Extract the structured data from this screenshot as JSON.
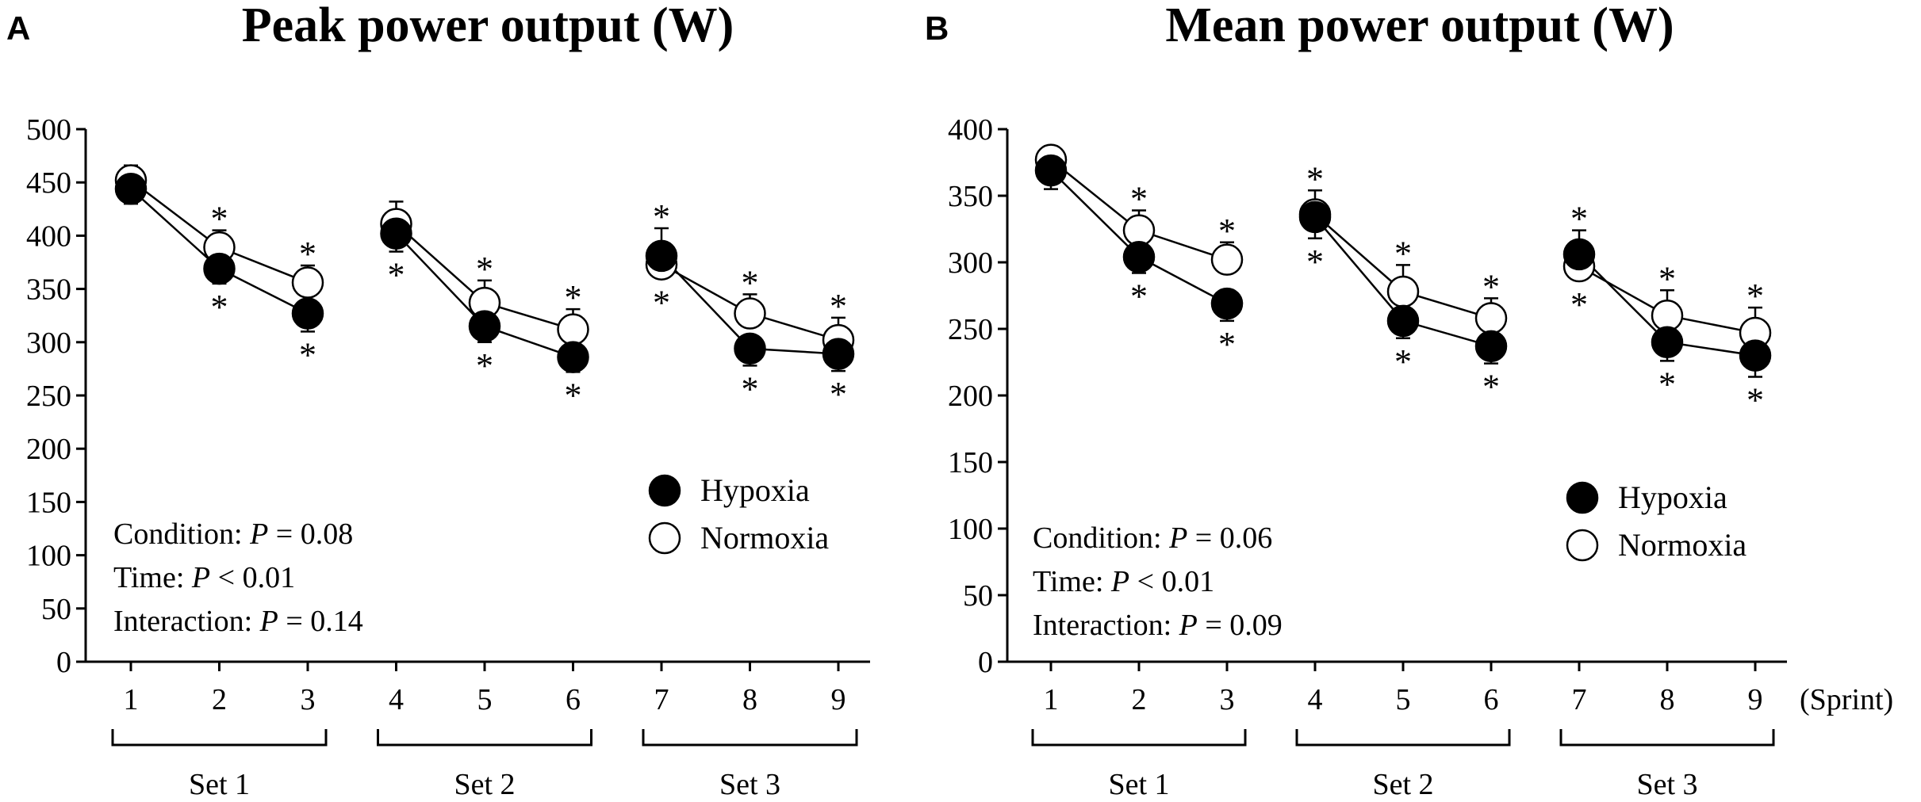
{
  "chart_data": [
    {
      "panel": "A",
      "type": "line",
      "title": "Peak power output (W)",
      "x": [
        1,
        2,
        3,
        4,
        5,
        6,
        7,
        8,
        9
      ],
      "xlabel": "",
      "ylabel": "",
      "ylim": [
        0,
        500
      ],
      "yticks": [
        0,
        50,
        100,
        150,
        200,
        250,
        300,
        350,
        400,
        450,
        500
      ],
      "line_segments": [
        [
          1,
          2,
          3
        ],
        [
          4,
          5,
          6
        ],
        [
          7,
          8,
          9
        ]
      ],
      "series": [
        {
          "name": "Hypoxia",
          "marker": "filled-circle",
          "values": [
            444,
            369,
            327,
            402,
            315,
            286,
            381,
            294,
            289
          ],
          "error_low": [
            430,
            355,
            310,
            385,
            300,
            272,
            362,
            278,
            273
          ]
        },
        {
          "name": "Normoxia",
          "marker": "open-circle",
          "values": [
            452,
            389,
            356,
            411,
            337,
            312,
            373,
            327,
            302
          ],
          "error_high": [
            466,
            405,
            372,
            432,
            358,
            331,
            407,
            345,
            323
          ]
        }
      ],
      "asterisks_above": [
        2,
        3,
        5,
        6,
        7,
        8,
        9
      ],
      "asterisks_below": [
        2,
        3,
        4,
        5,
        6,
        7,
        8,
        9
      ],
      "legend": [
        "Hypoxia",
        "Normoxia"
      ],
      "legend_position": "center-right",
      "stats": [
        {
          "label": "Condition: ",
          "p_symbol": "P",
          "rest": " = 0.08"
        },
        {
          "label": "Time: ",
          "p_symbol": "P",
          "rest": " < 0.01"
        },
        {
          "label": "Interaction: ",
          "p_symbol": "P",
          "rest": " = 0.14"
        }
      ],
      "sets": [
        {
          "label": "Set 1",
          "from": 1,
          "to": 3
        },
        {
          "label": "Set 2",
          "from": 4,
          "to": 6
        },
        {
          "label": "Set 3",
          "from": 7,
          "to": 9
        }
      ]
    },
    {
      "panel": "B",
      "type": "line",
      "title": "Mean power output (W)",
      "x": [
        1,
        2,
        3,
        4,
        5,
        6,
        7,
        8,
        9
      ],
      "xlabel": "(Sprint)",
      "ylabel": "",
      "ylim": [
        0,
        400
      ],
      "yticks": [
        0,
        50,
        100,
        150,
        200,
        250,
        300,
        350,
        400
      ],
      "line_segments": [
        [
          1,
          2,
          3
        ],
        [
          4,
          5,
          6
        ],
        [
          7,
          8,
          9
        ]
      ],
      "series": [
        {
          "name": "Hypoxia",
          "marker": "filled-circle",
          "values": [
            369,
            304,
            269,
            334,
            256,
            237,
            306,
            240,
            230
          ],
          "error_low": [
            355,
            292,
            256,
            318,
            243,
            224,
            290,
            226,
            214
          ]
        },
        {
          "name": "Normoxia",
          "marker": "open-circle",
          "values": [
            377,
            324,
            302,
            336,
            278,
            258,
            297,
            260,
            247
          ],
          "error_high": [
            386,
            339,
            315,
            354,
            298,
            273,
            324,
            279,
            266
          ]
        }
      ],
      "asterisks_above": [
        2,
        3,
        4,
        5,
        6,
        7,
        8,
        9
      ],
      "asterisks_below": [
        2,
        3,
        4,
        5,
        6,
        7,
        8,
        9
      ],
      "legend": [
        "Hypoxia",
        "Normoxia"
      ],
      "legend_position": "center-right",
      "stats": [
        {
          "label": "Condition: ",
          "p_symbol": "P",
          "rest": " = 0.06"
        },
        {
          "label": "Time: ",
          "p_symbol": "P",
          "rest": " < 0.01"
        },
        {
          "label": "Interaction: ",
          "p_symbol": "P",
          "rest": " = 0.09"
        }
      ],
      "sets": [
        {
          "label": "Set 1",
          "from": 1,
          "to": 3
        },
        {
          "label": "Set 2",
          "from": 4,
          "to": 6
        },
        {
          "label": "Set 3",
          "from": 7,
          "to": 9
        }
      ]
    }
  ]
}
